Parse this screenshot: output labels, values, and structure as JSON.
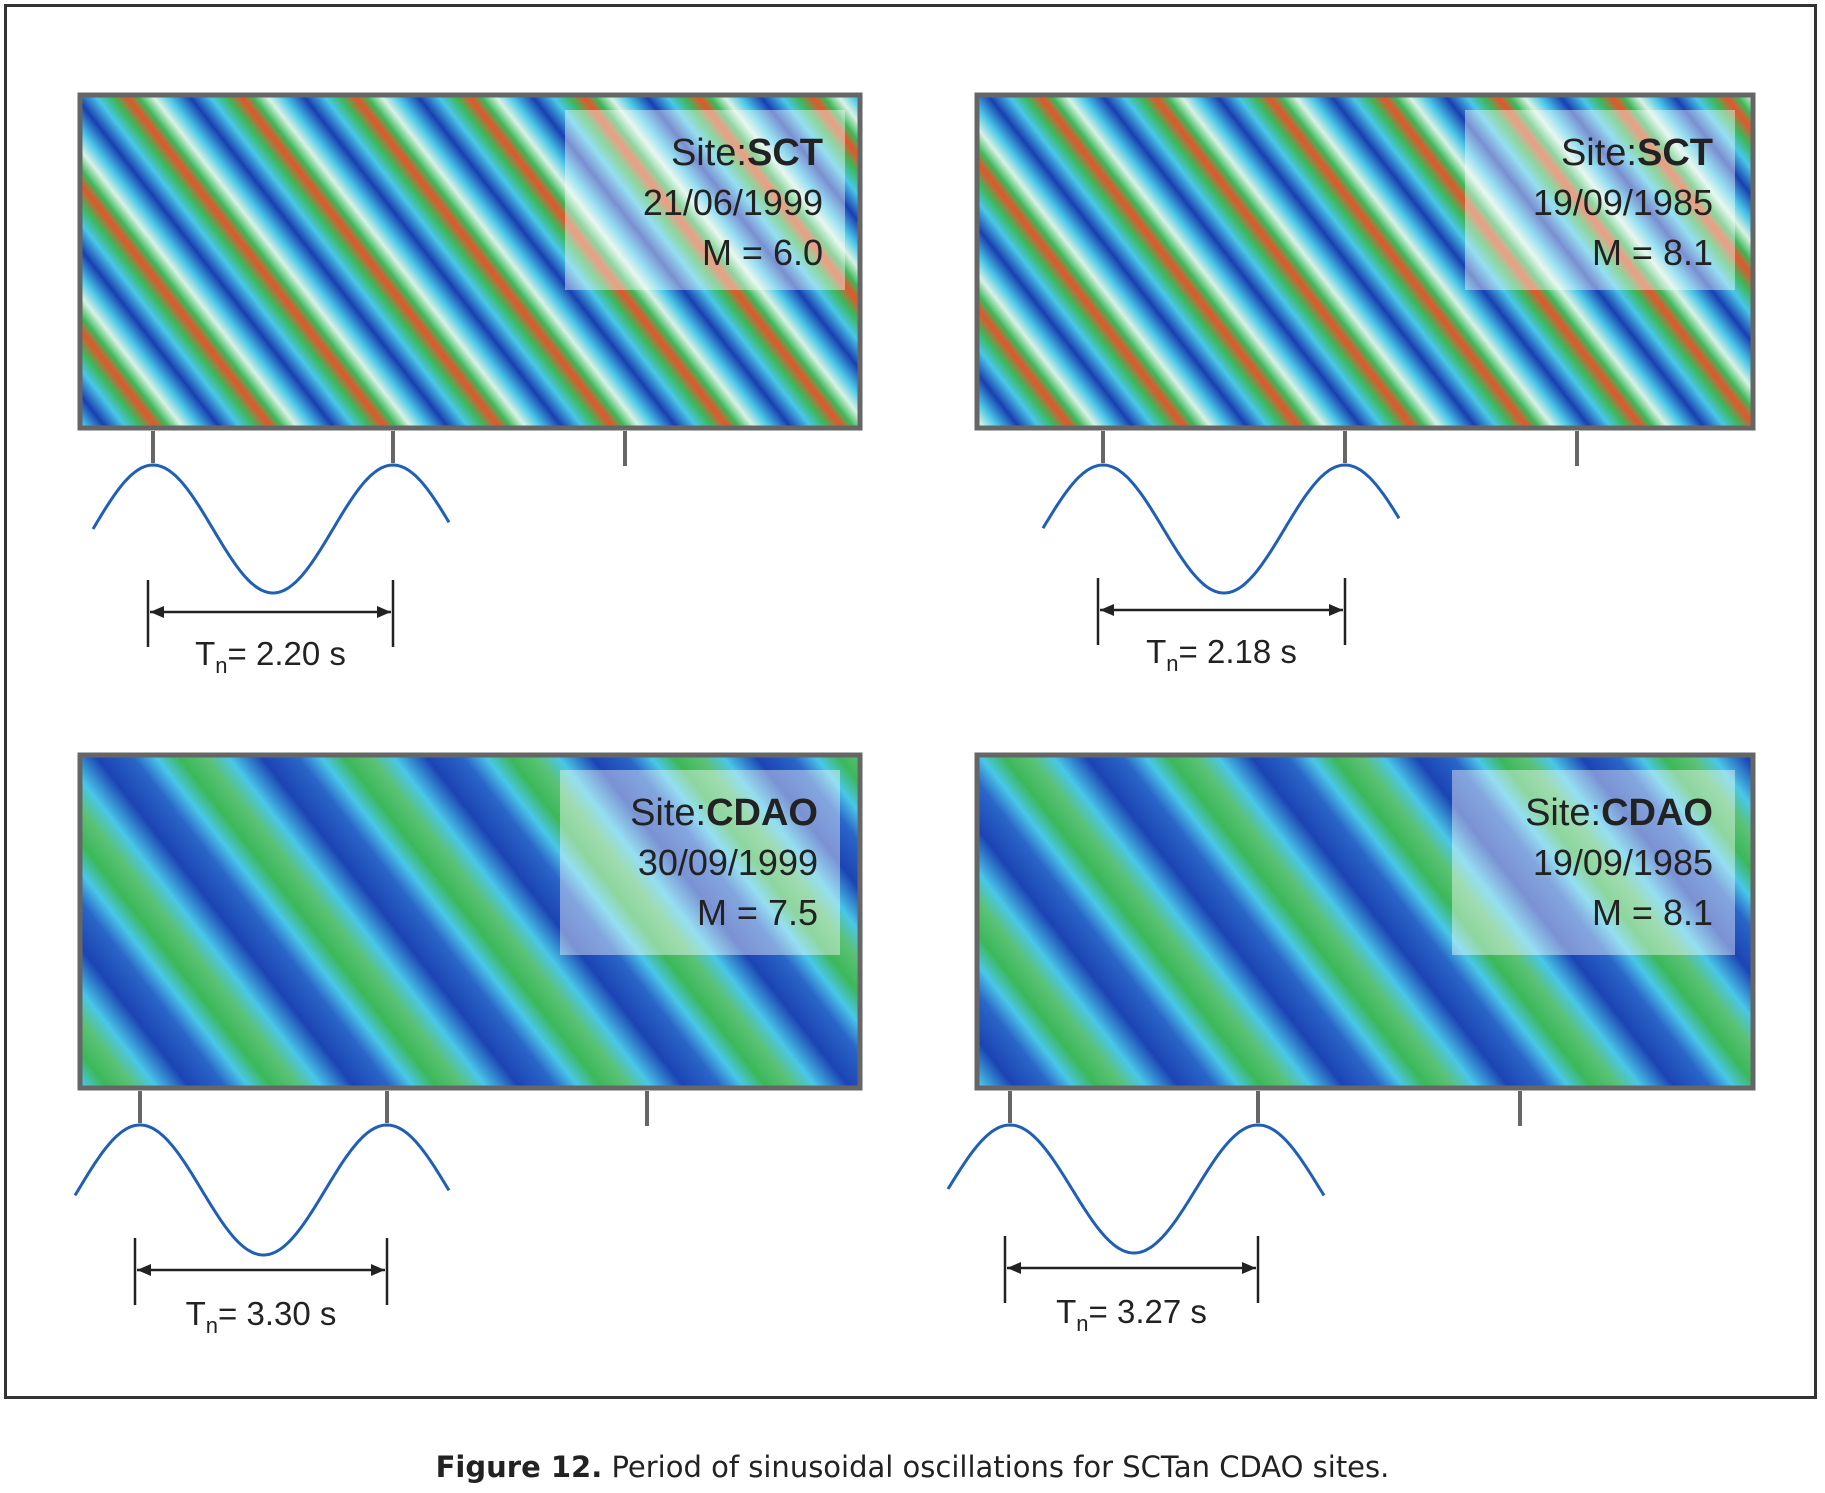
{
  "caption": {
    "label": "Figure 12.",
    "text": "Period of sinusoidal oscillations for SCTan CDAO sites."
  },
  "panels": [
    {
      "site_prefix": "Site:",
      "site": "SCT",
      "date": "21/06/1999",
      "magnitude": "M = 6.0",
      "period_prefix": "T",
      "period_sub": "n",
      "period_value": "= 2.20 s",
      "colormap": "sct"
    },
    {
      "site_prefix": "Site:",
      "site": "SCT",
      "date": "19/09/1985",
      "magnitude": "M = 8.1",
      "period_prefix": "T",
      "period_sub": "n",
      "period_value": "= 2.18 s",
      "colormap": "sct"
    },
    {
      "site_prefix": "Site:",
      "site": "CDAO",
      "date": "30/09/1999",
      "magnitude": "M = 7.5",
      "period_prefix": "T",
      "period_sub": "n",
      "period_value": "= 3.30 s",
      "colormap": "cdao"
    },
    {
      "site_prefix": "Site:",
      "site": "CDAO",
      "date": "19/09/1985",
      "magnitude": "M = 8.1",
      "period_prefix": "T",
      "period_sub": "n",
      "period_value": "= 3.27 s",
      "colormap": "cdao"
    }
  ],
  "colors": {
    "deep_blue": "#1a3fb0",
    "cyan": "#49c7e8",
    "green": "#3cb85a",
    "orange": "#e8532a",
    "pale": "#d8f2e4",
    "wave": "#1f5fb5",
    "frame": "#666666"
  }
}
